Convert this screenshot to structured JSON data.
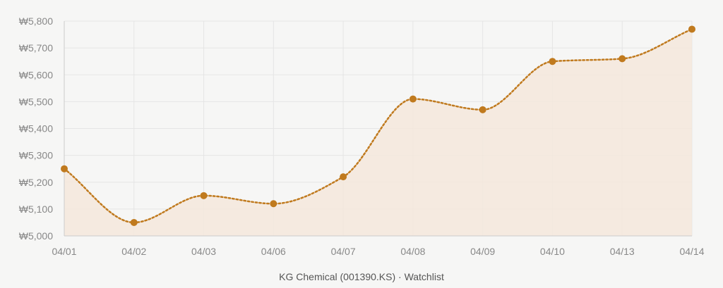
{
  "chart_data": {
    "type": "area",
    "title": "",
    "xlabel": "KG Chemical (001390.KS) · Watchlist",
    "ylabel": "",
    "categories": [
      "04/01",
      "04/02",
      "04/03",
      "04/06",
      "04/07",
      "04/08",
      "04/09",
      "04/10",
      "04/13",
      "04/14"
    ],
    "series": [
      {
        "values": [
          5250,
          5050,
          5150,
          5120,
          5220,
          5510,
          5470,
          5650,
          5660,
          5770
        ]
      }
    ],
    "ylim": [
      5000,
      5800
    ],
    "yticks": [
      5000,
      5100,
      5200,
      5300,
      5400,
      5500,
      5600,
      5700,
      5800
    ],
    "ytick_labels": [
      "₩5,000",
      "₩5,100",
      "₩5,200",
      "₩5,300",
      "₩5,400",
      "₩5,500",
      "₩5,600",
      "₩5,700",
      "₩5,800"
    ],
    "grid": true,
    "line_style": "dotted",
    "colors": {
      "line": "#c07a1e",
      "fill": "#f4e8dc",
      "grid": "#e5e5e5",
      "axis": "#cccccc",
      "background": "#f6f6f5"
    }
  }
}
